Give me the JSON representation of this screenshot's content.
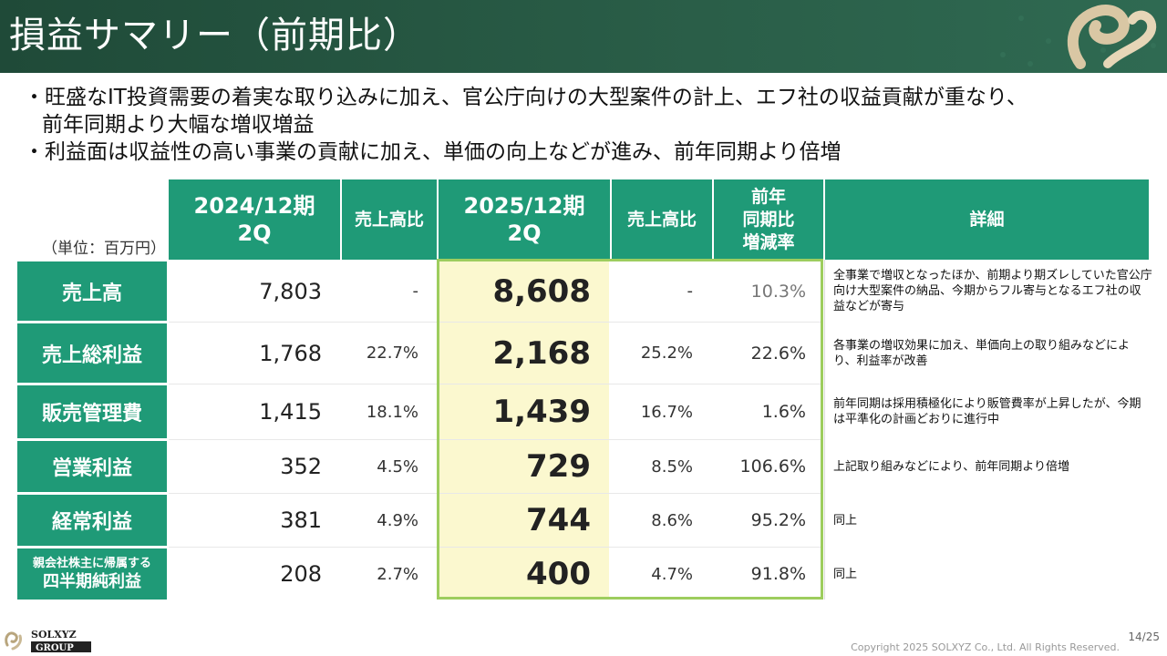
{
  "title": "損益サマリー（前期比）",
  "bullets": {
    "b1_line1": "・旺盛なIT投資需要の着実な取り込みに加え、官公庁向けの大型案件の計上、エフ社の収益貢献が重なり、",
    "b1_line2": "前年同期より大幅な増収増益",
    "b2": "・利益面は収益性の高い事業の貢献に加え、単価の向上などが進み、前年同期より倍増"
  },
  "unit_label": "（単位：百万円）",
  "columns": {
    "prev_period_l1": "2024/12期",
    "prev_period_l2": "2Q",
    "ratio1": "売上高比",
    "cur_period_l1": "2025/12期",
    "cur_period_l2": "2Q",
    "ratio2": "売上高比",
    "yoy_l1": "前年",
    "yoy_l2": "同期比",
    "yoy_l3": "増減率",
    "detail": "詳細"
  },
  "rows": [
    {
      "label": "売上高",
      "prev": "7,803",
      "ratio1": "-",
      "cur": "8,608",
      "ratio2": "-",
      "yoy": "10.3%",
      "detail": "全事業で増収となったほか、前期より期ズレしていた官公庁向け大型案件の納品、今期からフル寄与となるエフ社の収益などが寄与"
    },
    {
      "label": "売上総利益",
      "prev": "1,768",
      "ratio1": "22.7%",
      "cur": "2,168",
      "ratio2": "25.2%",
      "yoy": "22.6%",
      "detail": "各事業の増収効果に加え、単価向上の取り組みなどにより、利益率が改善"
    },
    {
      "label": "販売管理費",
      "prev": "1,415",
      "ratio1": "18.1%",
      "cur": "1,439",
      "ratio2": "16.7%",
      "yoy": "1.6%",
      "detail": "前年同期は採用積極化により販管費率が上昇したが、今期は平準化の計画どおりに進行中"
    },
    {
      "label": "営業利益",
      "prev": "352",
      "ratio1": "4.5%",
      "cur": "729",
      "ratio2": "8.5%",
      "yoy": "106.6%",
      "detail": "上記取り組みなどにより、前年同期より倍増"
    },
    {
      "label": "経常利益",
      "prev": "381",
      "ratio1": "4.9%",
      "cur": "744",
      "ratio2": "8.6%",
      "yoy": "95.2%",
      "detail": "同上"
    },
    {
      "label_l1": "親会社株主に帰属する",
      "label_l2": "四半期純利益",
      "prev": "208",
      "ratio1": "2.7%",
      "cur": "400",
      "ratio2": "4.7%",
      "yoy": "91.8%",
      "detail": "同上"
    }
  ],
  "footer": {
    "logo_top": "SOLXYZ",
    "logo_bottom": "GROUP",
    "page": "14/25",
    "copyright": "Copyright 2025 SOLXYZ Co., Ltd. All Rights Reserved."
  },
  "colors": {
    "header_bg": "#2a5e48",
    "table_header": "#1f9a77",
    "highlight_fill": "#fbf8cf",
    "highlight_border": "#9dcd5e"
  }
}
